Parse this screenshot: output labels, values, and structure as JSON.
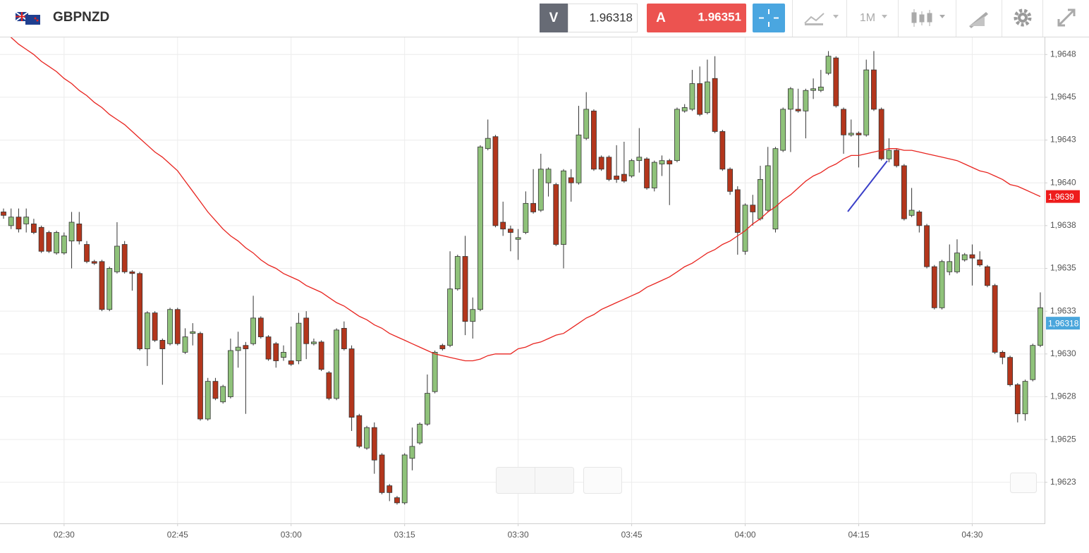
{
  "header": {
    "symbol": "GBPNZD",
    "bid_label": "V",
    "bid": "1.96318",
    "ask_label": "A",
    "ask": "1.96351",
    "timeframe": "1M"
  },
  "chart_data": {
    "type": "candlestick",
    "categories": [
      null,
      null,
      null,
      null,
      null,
      null,
      null,
      null,
      "02:30",
      null,
      null,
      null,
      null,
      null,
      null,
      null,
      null,
      null,
      null,
      null,
      null,
      null,
      null,
      "02:45",
      null,
      null,
      null,
      null,
      null,
      null,
      null,
      null,
      null,
      null,
      null,
      null,
      null,
      null,
      "03:00",
      null,
      null,
      null,
      null,
      null,
      null,
      null,
      null,
      null,
      null,
      null,
      null,
      null,
      null,
      "03:15",
      null,
      null,
      null,
      null,
      null,
      null,
      null,
      null,
      null,
      null,
      null,
      null,
      null,
      null,
      "03:30",
      null,
      null,
      null,
      null,
      null,
      null,
      null,
      null,
      null,
      null,
      null,
      null,
      null,
      null,
      "03:45",
      null,
      null,
      null,
      null,
      null,
      null,
      null,
      null,
      null,
      null,
      null,
      null,
      null,
      null,
      "04:00",
      null,
      null,
      null,
      null,
      null,
      null,
      null,
      null,
      null,
      null,
      null,
      null,
      null,
      null,
      "04:15",
      null,
      null,
      null,
      null,
      null,
      null,
      null,
      null,
      null,
      null,
      null,
      null,
      null,
      null,
      "04:30",
      null,
      null,
      null,
      null,
      null,
      null,
      null,
      null,
      null
    ],
    "open": [
      1.96383,
      1.96375,
      1.9638,
      1.96376,
      1.96376,
      1.96374,
      1.96371,
      1.96359,
      1.96359,
      1.96366,
      1.96376,
      1.96364,
      1.96354,
      1.96354,
      1.96326,
      1.96348,
      1.96364,
      1.96348,
      1.96347,
      1.96303,
      1.96324,
      1.96308,
      1.96306,
      1.96326,
      1.96301,
      1.96312,
      1.96312,
      1.96262,
      1.96284,
      1.96272,
      1.96275,
      1.96302,
      1.96305,
      1.96306,
      1.96321,
      1.9631,
      1.96306,
      1.96298,
      1.96296,
      1.96296,
      1.96321,
      1.96306,
      1.96307,
      1.96289,
      1.96274,
      1.96315,
      1.96303,
      1.96264,
      1.96245,
      1.96257,
      1.96241,
      1.96223,
      1.96216,
      1.96213,
      1.96239,
      1.96248,
      1.96259,
      1.96278,
      1.96305,
      1.96305,
      1.96338,
      1.96357,
      1.96319,
      1.96326,
      1.9642,
      1.96427,
      1.96377,
      1.96373,
      1.96367,
      1.96371,
      1.96388,
      1.96384,
      1.964,
      1.96399,
      1.96364,
      1.96403,
      1.964,
      1.96426,
      1.96442,
      1.96415,
      1.96415,
      1.96404,
      1.96405,
      1.96404,
      1.96413,
      1.96414,
      1.96397,
      1.96411,
      1.96413,
      1.96413,
      1.96442,
      1.96443,
      1.96458,
      1.96441,
      1.96461,
      1.9643,
      1.96408,
      1.96396,
      1.9636,
      1.96387,
      1.96379,
      1.96384,
      1.96373,
      1.96419,
      1.96443,
      1.96443,
      1.96442,
      1.96454,
      1.96454,
      1.96464,
      1.96473,
      1.96443,
      1.96428,
      1.96429,
      1.96428,
      1.96466,
      1.96443,
      1.96414,
      1.96419,
      1.9641,
      1.96381,
      1.96383,
      1.96375,
      1.96351,
      1.96327,
      1.96348,
      1.96348,
      1.96355,
      1.96358,
      1.96355,
      1.96351,
      1.9634,
      1.96301,
      1.96298,
      1.96282,
      1.96265,
      1.96285,
      1.96305
    ],
    "high": [
      1.96385,
      1.96385,
      1.96385,
      1.96385,
      1.96379,
      1.96375,
      1.96372,
      1.96372,
      1.96371,
      1.96383,
      1.96383,
      1.96366,
      1.96355,
      1.96355,
      1.96351,
      1.96377,
      1.96366,
      1.96349,
      1.96348,
      1.96325,
      1.96325,
      1.96309,
      1.96327,
      1.96327,
      1.96315,
      1.96318,
      1.96313,
      1.96286,
      1.96286,
      1.96282,
      1.96309,
      1.96313,
      1.96307,
      1.96334,
      1.96322,
      1.96311,
      1.96307,
      1.96305,
      1.96316,
      1.96324,
      1.96325,
      1.96309,
      1.96308,
      1.9629,
      1.96315,
      1.96319,
      1.96305,
      1.96265,
      1.96258,
      1.9626,
      1.96242,
      1.96224,
      1.96217,
      1.96242,
      1.96257,
      1.9626,
      1.96288,
      1.96302,
      1.96306,
      1.9636,
      1.96358,
      1.96369,
      1.96333,
      1.96422,
      1.96437,
      1.96428,
      1.96389,
      1.96375,
      1.96373,
      1.96395,
      1.96408,
      1.96417,
      1.96409,
      1.964,
      1.96408,
      1.96408,
      1.96445,
      1.96453,
      1.96443,
      1.96416,
      1.96416,
      1.96422,
      1.96424,
      1.96414,
      1.96432,
      1.96415,
      1.96413,
      1.96416,
      1.96414,
      1.96444,
      1.96446,
      1.96466,
      1.96468,
      1.96472,
      1.96474,
      1.96431,
      1.96409,
      1.96398,
      1.96388,
      1.96393,
      1.9641,
      1.96421,
      1.96421,
      1.96444,
      1.96456,
      1.96455,
      1.96455,
      1.96461,
      1.96466,
      1.96477,
      1.96474,
      1.96444,
      1.96437,
      1.9643,
      1.96472,
      1.96477,
      1.96444,
      1.96426,
      1.9642,
      1.96411,
      1.96397,
      1.96384,
      1.96376,
      1.96352,
      1.96355,
      1.96364,
      1.96367,
      1.96359,
      1.96364,
      1.9636,
      1.96352,
      1.96341,
      1.96302,
      1.96299,
      1.96283,
      1.96285,
      1.96306,
      1.96336
    ],
    "low": [
      1.96379,
      1.96373,
      1.96371,
      1.96371,
      1.9637,
      1.96359,
      1.96359,
      1.96358,
      1.96358,
      1.9635,
      1.96364,
      1.96353,
      1.96352,
      1.96325,
      1.96325,
      1.96347,
      1.96347,
      1.96337,
      1.96302,
      1.96293,
      1.96307,
      1.96282,
      1.96305,
      1.96305,
      1.963,
      1.96305,
      1.96261,
      1.96261,
      1.96273,
      1.96271,
      1.96274,
      1.96292,
      1.96265,
      1.96305,
      1.96309,
      1.96296,
      1.96292,
      1.96296,
      1.96293,
      1.96294,
      1.96297,
      1.96305,
      1.9629,
      1.96273,
      1.96273,
      1.96302,
      1.96255,
      1.96245,
      1.96244,
      1.9623,
      1.96218,
      1.96214,
      1.96212,
      1.96212,
      1.96232,
      1.96247,
      1.96258,
      1.96277,
      1.96302,
      1.96304,
      1.96337,
      1.96311,
      1.96309,
      1.96325,
      1.96419,
      1.96374,
      1.96369,
      1.9636,
      1.96355,
      1.9637,
      1.96382,
      1.96383,
      1.96392,
      1.96363,
      1.9635,
      1.96389,
      1.96399,
      1.96425,
      1.96407,
      1.96407,
      1.96401,
      1.964,
      1.964,
      1.96403,
      1.96406,
      1.96396,
      1.96395,
      1.96404,
      1.96387,
      1.96412,
      1.96441,
      1.96442,
      1.96439,
      1.9644,
      1.96429,
      1.96407,
      1.96393,
      1.96358,
      1.96358,
      1.96375,
      1.96378,
      1.96383,
      1.96371,
      1.96418,
      1.96418,
      1.96441,
      1.96426,
      1.96449,
      1.96453,
      1.96463,
      1.96444,
      1.96417,
      1.96427,
      1.96409,
      1.96427,
      1.96442,
      1.96413,
      1.96412,
      1.96409,
      1.96378,
      1.9638,
      1.96371,
      1.9635,
      1.96326,
      1.96326,
      1.96346,
      1.96347,
      1.96354,
      1.9634,
      1.96351,
      1.96339,
      1.963,
      1.96294,
      1.96281,
      1.9626,
      1.96261,
      1.96284,
      1.96304
    ],
    "close": [
      1.96381,
      1.9638,
      1.96373,
      1.9638,
      1.96371,
      1.9636,
      1.9636,
      1.96371,
      1.96369,
      1.96377,
      1.96366,
      1.96354,
      1.96353,
      1.96326,
      1.9635,
      1.96363,
      1.96348,
      1.96347,
      1.96303,
      1.96324,
      1.96308,
      1.96303,
      1.96326,
      1.96306,
      1.9631,
      1.96313,
      1.96262,
      1.96284,
      1.96274,
      1.96281,
      1.96302,
      1.96304,
      1.96303,
      1.96321,
      1.9631,
      1.96297,
      1.96296,
      1.96301,
      1.96294,
      1.96318,
      1.96306,
      1.96307,
      1.96291,
      1.96274,
      1.96314,
      1.96303,
      1.96263,
      1.96246,
      1.96257,
      1.96238,
      1.96219,
      1.96219,
      1.96213,
      1.96241,
      1.96246,
      1.96259,
      1.96277,
      1.96301,
      1.96303,
      1.96338,
      1.96357,
      1.96319,
      1.96326,
      1.96421,
      1.96426,
      1.96375,
      1.96373,
      1.96371,
      1.96368,
      1.96388,
      1.96383,
      1.96408,
      1.96408,
      1.96364,
      1.96407,
      1.964,
      1.96428,
      1.96443,
      1.96408,
      1.96408,
      1.96402,
      1.96402,
      1.96401,
      1.96413,
      1.96415,
      1.96397,
      1.96412,
      1.96413,
      1.96411,
      1.96443,
      1.96444,
      1.96458,
      1.9644,
      1.96459,
      1.9643,
      1.96408,
      1.96395,
      1.96371,
      1.96387,
      1.96383,
      1.96402,
      1.9641,
      1.9642,
      1.96443,
      1.96455,
      1.96442,
      1.96454,
      1.96455,
      1.96456,
      1.96474,
      1.96445,
      1.96428,
      1.96429,
      1.96428,
      1.96466,
      1.96443,
      1.96414,
      1.96419,
      1.9641,
      1.96379,
      1.96384,
      1.96375,
      1.96351,
      1.96327,
      1.96354,
      1.96354,
      1.96359,
      1.96358,
      1.96356,
      1.96352,
      1.9634,
      1.96301,
      1.96298,
      1.96282,
      1.96265,
      1.96284,
      1.96305,
      1.96327
    ],
    "up_color": "#8fc27a",
    "down_color": "#b3361c",
    "moving_average": {
      "color": "#e8241f",
      "values": [
        1.96488,
        1.96485,
        1.96481,
        1.96478,
        1.96475,
        1.96471,
        1.96468,
        1.96465,
        1.96461,
        1.96458,
        1.96454,
        1.96451,
        1.96447,
        1.96444,
        1.9644,
        1.96437,
        1.96434,
        1.9643,
        1.96426,
        1.96422,
        1.96418,
        1.96415,
        1.96411,
        1.96407,
        1.96401,
        1.96395,
        1.96389,
        1.96383,
        1.96378,
        1.96373,
        1.96369,
        1.96366,
        1.96362,
        1.96359,
        1.96355,
        1.96352,
        1.9635,
        1.96347,
        1.96345,
        1.96343,
        1.9634,
        1.96338,
        1.96336,
        1.96333,
        1.9633,
        1.96328,
        1.96325,
        1.96322,
        1.9632,
        1.96317,
        1.96315,
        1.96312,
        1.9631,
        1.96308,
        1.96306,
        1.96304,
        1.96302,
        1.963,
        1.96299,
        1.96298,
        1.96297,
        1.96296,
        1.96296,
        1.96297,
        1.96299,
        1.963,
        1.963,
        1.963,
        1.96303,
        1.96304,
        1.96306,
        1.96307,
        1.96309,
        1.96311,
        1.96312,
        1.96315,
        1.96318,
        1.96321,
        1.96323,
        1.96326,
        1.96328,
        1.9633,
        1.96332,
        1.96334,
        1.96336,
        1.96339,
        1.96341,
        1.96343,
        1.96345,
        1.96348,
        1.96351,
        1.96353,
        1.96356,
        1.96359,
        1.96361,
        1.96364,
        1.96366,
        1.96369,
        1.96372,
        1.96376,
        1.96379,
        1.96383,
        1.96386,
        1.9639,
        1.96393,
        1.96397,
        1.96401,
        1.96404,
        1.96406,
        1.96409,
        1.96411,
        1.96414,
        1.96416,
        1.96416,
        1.96417,
        1.96418,
        1.96419,
        1.9642,
        1.9642,
        1.96419,
        1.96419,
        1.96418,
        1.96417,
        1.96416,
        1.96415,
        1.96414,
        1.96413,
        1.96411,
        1.96409,
        1.96407,
        1.96406,
        1.96404,
        1.96402,
        1.96399,
        1.96398,
        1.96396,
        1.96394,
        1.96392
      ]
    },
    "ylim": [
      1.96201,
      1.96485
    ],
    "yticks": [
      {
        "value": 1.96475,
        "label": "1,9648"
      },
      {
        "value": 1.9645,
        "label": "1,9645"
      },
      {
        "value": 1.96425,
        "label": "1,9643"
      },
      {
        "value": 1.964,
        "label": "1,9640"
      },
      {
        "value": 1.96375,
        "label": "1,9638"
      },
      {
        "value": 1.9635,
        "label": "1,9635"
      },
      {
        "value": 1.96325,
        "label": "1,9633"
      },
      {
        "value": 1.963,
        "label": "1,9630"
      },
      {
        "value": 1.96275,
        "label": "1,9628"
      },
      {
        "value": 1.9625,
        "label": "1,9625"
      },
      {
        "value": 1.96225,
        "label": "1,9623"
      }
    ],
    "grid": true,
    "price_tags": [
      {
        "value": 1.96392,
        "label": "1,9639",
        "color": "#ee1c1c"
      },
      {
        "value": 1.96318,
        "label": "1,96318",
        "color": "#4aa6dc"
      }
    ]
  }
}
